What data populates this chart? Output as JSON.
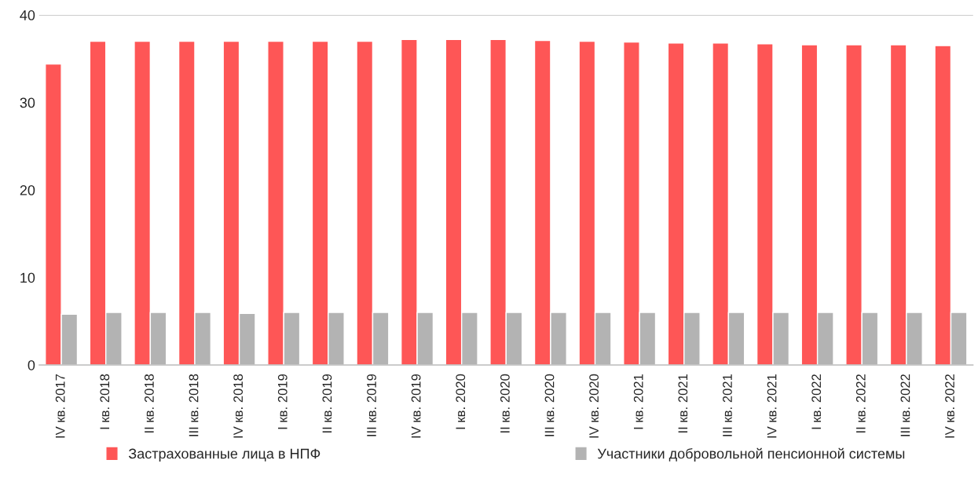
{
  "chart_data": {
    "type": "bar",
    "categories": [
      "IV кв. 2017",
      "I кв. 2018",
      "II кв. 2018",
      "III кв. 2018",
      "IV кв. 2018",
      "I кв. 2019",
      "II кв. 2019",
      "III кв. 2019",
      "IV кв. 2019",
      "I кв. 2020",
      "II кв. 2020",
      "III кв. 2020",
      "IV кв. 2020",
      "I кв. 2021",
      "II кв. 2021",
      "III кв. 2021",
      "IV кв. 2021",
      "I кв. 2022",
      "II кв. 2022",
      "III кв. 2022",
      "IV кв. 2022"
    ],
    "series": [
      {
        "name": "Застрахованные лица в НПФ",
        "color": "#fe5656",
        "values": [
          34.4,
          37.0,
          37.0,
          37.0,
          37.0,
          37.0,
          37.0,
          37.0,
          37.2,
          37.2,
          37.2,
          37.1,
          37.0,
          36.9,
          36.8,
          36.8,
          36.7,
          36.6,
          36.6,
          36.6,
          36.5
        ]
      },
      {
        "name": "Участники добровольной пенсионной системы",
        "color": "#b3b3b3",
        "values": [
          5.8,
          6.0,
          6.0,
          6.0,
          5.9,
          6.0,
          6.0,
          6.0,
          6.0,
          6.0,
          6.0,
          6.0,
          6.0,
          6.0,
          6.0,
          6.0,
          6.0,
          6.0,
          6.0,
          6.0,
          6.0
        ]
      }
    ],
    "ylim": [
      0,
      40
    ],
    "yticks": [
      0,
      10,
      20,
      30,
      40
    ],
    "ref_lines": [
      {
        "axis": "y",
        "value": 40,
        "label": null,
        "color": "#cccccc"
      }
    ],
    "grid": false,
    "legend": "bottom"
  }
}
